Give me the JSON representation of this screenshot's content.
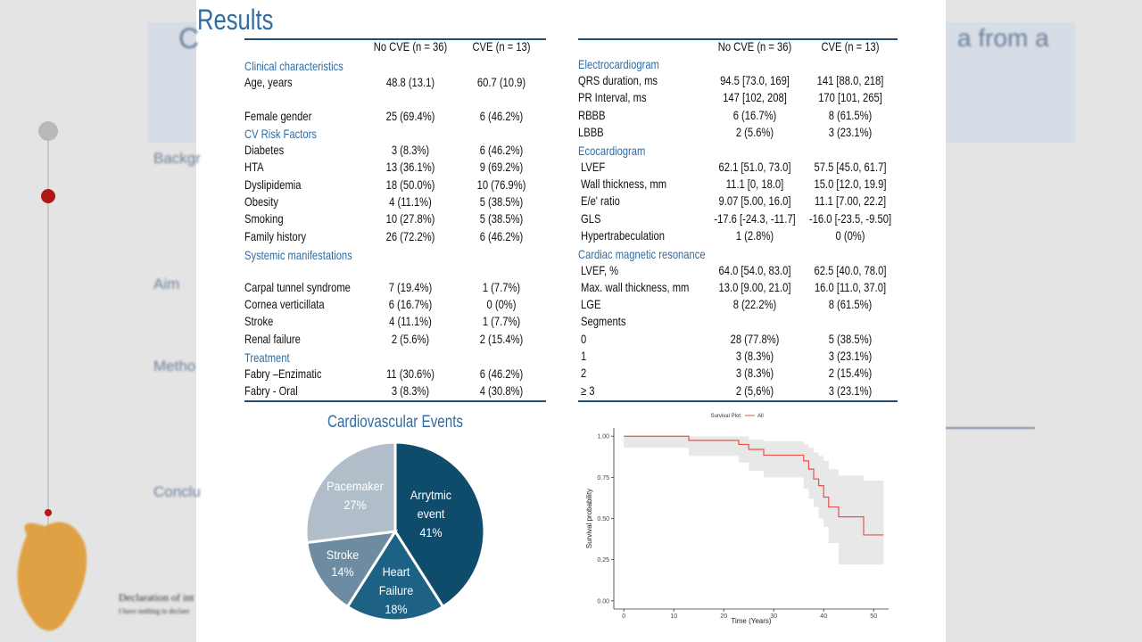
{
  "background": {
    "texts": [
      "C",
      "a from a",
      "Backgr",
      "Aim",
      "Metho",
      "Conclu",
      "Declaration of int",
      "I have nothing to declare"
    ]
  },
  "title": "Results",
  "tables": [
    {
      "header": [
        "No CVE (n = 36)",
        "CVE (n = 13)"
      ],
      "sections": [
        {
          "title": "Clinical characteristics",
          "rows": [
            [
              "Age, years",
              "48.8 (13.1)",
              "60.7 (10.9)"
            ],
            [
              "Female gender",
              "25 (69.4%)",
              "6 (46.2%)"
            ]
          ]
        },
        {
          "title": "CV Risk Factors",
          "rows": [
            [
              "Diabetes",
              "3 (8.3%)",
              "6 (46.2%)"
            ],
            [
              "HTA",
              "13 (36.1%)",
              "9 (69.2%)"
            ],
            [
              "Dyslipidemia",
              "18 (50.0%)",
              "10 (76.9%)"
            ],
            [
              "Obesity",
              "4 (11.1%)",
              "5 (38.5%)"
            ],
            [
              "Smoking",
              "10 (27.8%)",
              "5 (38.5%)"
            ],
            [
              "Family history",
              "26 (72.2%)",
              "6 (46.2%)"
            ]
          ]
        },
        {
          "title": "Systemic manifestations",
          "rows": [
            [
              "Carpal tunnel syndrome",
              "7 (19.4%)",
              "1 (7.7%)"
            ],
            [
              "Cornea verticillata",
              "6 (16.7%)",
              "0 (0%)"
            ],
            [
              "Stroke",
              "4 (11.1%)",
              "1 (7.7%)"
            ],
            [
              "Renal failure",
              "2 (5.6%)",
              "2 (15.4%)"
            ]
          ]
        },
        {
          "title": "Treatment",
          "rows": [
            [
              "Fabry –Enzimatic",
              "11 (30.6%)",
              "6 (46.2%)"
            ],
            [
              "Fabry - Oral",
              "3 (8.3%)",
              "4 (30.8%)"
            ]
          ]
        }
      ]
    },
    {
      "header": [
        "No CVE (n = 36)",
        "CVE (n = 13)"
      ],
      "sections": [
        {
          "title": "Electrocardiogram",
          "rows": [
            [
              "QRS duration, ms",
              "94.5 [73.0, 169]",
              "141 [88.0, 218]"
            ],
            [
              "PR Interval, ms",
              "147 [102, 208]",
              "170 [101, 265]"
            ],
            [
              "RBBB",
              "6 (16.7%)",
              "8 (61.5%)"
            ],
            [
              "LBBB",
              "2 (5.6%)",
              "3 (23.1%)"
            ]
          ]
        },
        {
          "title": "Ecocardiogram",
          "rows": [
            [
              "LVEF",
              "62.1 [51.0, 73.0]",
              "57.5 [45.0, 61.7]"
            ],
            [
              "Wall thickness, mm",
              "11.1 [0, 18.0]",
              "15.0 [12.0, 19.9]"
            ],
            [
              "E/e' ratio",
              "9.07 [5.00, 16.0]",
              "11.1 [7.00, 22.2]"
            ],
            [
              "GLS",
              "-17.6 [-24.3, -11.7]",
              "-16.0 [-23.5, -9.50]"
            ],
            [
              "Hypertrabeculation",
              "1 (2.8%)",
              "0 (0%)"
            ]
          ]
        },
        {
          "title": "Cardiac magnetic resonance",
          "rows": [
            [
              "LVEF, %",
              "64.0 [54.0, 83.0]",
              "62.5 [40.0, 78.0]"
            ],
            [
              "Max. wall thickness, mm",
              "13.0 [9.00, 21.0]",
              "16.0 [11.0, 37.0]"
            ],
            [
              "LGE",
              "8 (22.2%)",
              "8 (61.5%)"
            ],
            [
              "Segments"
            ],
            [
              "0",
              "28 (77.8%)",
              "5 (38.5%)"
            ],
            [
              "1",
              "3 (8.3%)",
              "3 (23.1%)"
            ],
            [
              "2",
              "3 (8.3%)",
              "2 (15.4%)"
            ],
            [
              "≥ 3",
              "2 (5,6%)",
              "3 (23.1%)"
            ]
          ]
        }
      ]
    }
  ],
  "chart_data": [
    {
      "type": "pie",
      "title": "Cardiovascular Events",
      "categories": [
        "Arrytmic event",
        "Heart Failure",
        "Stroke",
        "Pacemaker"
      ],
      "values": [
        41,
        18,
        14,
        27
      ],
      "value_labels": [
        "41%",
        "18%",
        "14%",
        "27%"
      ],
      "colors": [
        "#0f4c6c",
        "#1d6185",
        "#6e8ca1",
        "#b1bdc8"
      ]
    },
    {
      "type": "step",
      "title": "Survival Plot",
      "xlabel": "Time (Years)",
      "ylabel": "Survival probability",
      "x": [
        0,
        13,
        23,
        25,
        28,
        36,
        37,
        38,
        39,
        40,
        41,
        43,
        48,
        52
      ],
      "series": [
        {
          "name": "All",
          "color": "#e8524a",
          "values": [
            1,
            0.975,
            0.95,
            0.92,
            0.885,
            0.85,
            0.8,
            0.74,
            0.7,
            0.63,
            0.57,
            0.51,
            0.4,
            0.4
          ],
          "lower": [
            1,
            0.93,
            0.88,
            0.84,
            0.79,
            0.75,
            0.68,
            0.62,
            0.57,
            0.5,
            0.45,
            0.35,
            0.22,
            0.22
          ],
          "upper": [
            1,
            1,
            1,
            0.98,
            0.97,
            0.95,
            0.93,
            0.9,
            0.88,
            0.85,
            0.8,
            0.76,
            0.73,
            0.73
          ]
        }
      ],
      "xlim": [
        -2,
        53
      ],
      "ylim": [
        -0.05,
        1.05
      ],
      "xticks": [
        0,
        10,
        20,
        30,
        40,
        50
      ],
      "yticks": [
        {
          "value": 0,
          "label": "0.00"
        },
        {
          "value": 0.25,
          "label": "0.25"
        },
        {
          "value": 0.5,
          "label": "0.50"
        },
        {
          "value": 0.75,
          "label": "0.75"
        },
        {
          "value": 1,
          "label": "1.00"
        }
      ]
    }
  ]
}
